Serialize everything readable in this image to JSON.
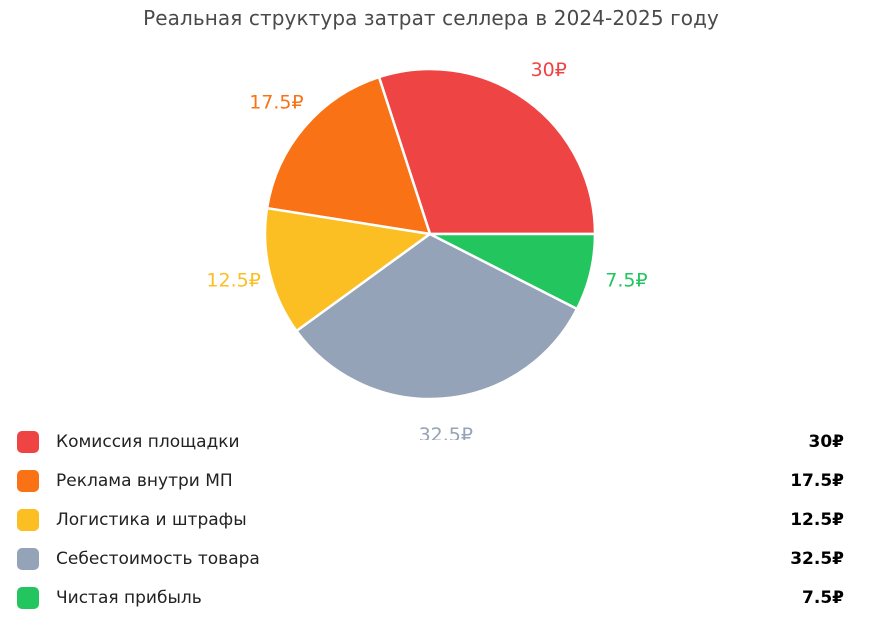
{
  "chart_data": {
    "type": "pie",
    "title": "Реальная структура затрат селлера в 2024-2025 году",
    "unit": "₽",
    "slices": [
      {
        "label": "Комиссия площадки",
        "value": 30,
        "display": "30₽",
        "color": "#ef4444"
      },
      {
        "label": "Реклама внутри МП",
        "value": 17.5,
        "display": "17.5₽",
        "color": "#f97316"
      },
      {
        "label": "Логистика и штрафы",
        "value": 12.5,
        "display": "12.5₽",
        "color": "#fbbf24"
      },
      {
        "label": "Себестоимость товара",
        "value": 32.5,
        "display": "32.5₽",
        "color": "#94a3b8"
      },
      {
        "label": "Чистая прибыль",
        "value": 7.5,
        "display": "7.5₽",
        "color": "#22c55e"
      }
    ],
    "legend_position": "bottom",
    "start_angle": "3 o'clock",
    "direction": "counterclockwise"
  }
}
